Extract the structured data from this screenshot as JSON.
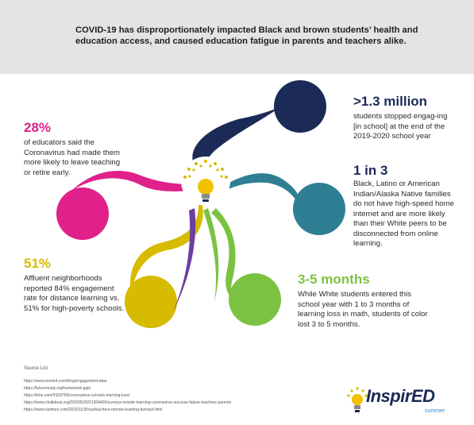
{
  "header": {
    "text": "COVID-19 has disproportionately impacted Black and brown students’ health and education access, and caused education fatigue in parents and teachers alike."
  },
  "stats": [
    {
      "value": "28%",
      "color": "#e0218a",
      "text": "of educators said the Coronavirus had made them more likely to leave teaching or retire early."
    },
    {
      "value": ">1.3 million",
      "color": "#1b2a57",
      "text": "students stopped engag-ing [in school] at the end of the 2019-2020 school year"
    },
    {
      "value": "1 in 3",
      "color": "#1b2a57",
      "text": "Black, Latino or American Indian/Alaska Native families do not have high-speed home internet and are more likely than their White peers to be disconnected from online learning."
    },
    {
      "value": "51%",
      "color": "#d6bb00",
      "text": "Affluent neighborhoods reported 84% engagement rate for distance learning vs. 51% for high-poverty schools."
    },
    {
      "value": "3-5 months",
      "color": "#7cc242",
      "text": "While White students entered this school year with 1 to 3 months of learning loss in math, students of color lost 3 to 5 months."
    }
  ],
  "sources": {
    "title": "Source List",
    "links": [
      "https://www.remind.com/blog/engagement-data",
      "https://futureready.org/homework-gap/",
      "https://time.com/5918769/coronavirus-schools-learning-loss/",
      "https://www.chalkbeat.org/2020/6/26/21304405/surveys-remote-learning-coronavirus-success-failure-teachers-parents",
      "https://www.nytimes.com/2020/11/30/us/teachers-remote-learning-burnout.html"
    ]
  },
  "logo": {
    "text_a": "InspirED",
    "sub": "summer"
  },
  "colors": {
    "pink": "#e0218a",
    "navy": "#1b2a57",
    "teal": "#2e7f93",
    "yellow": "#d6bb00",
    "green": "#7cc242",
    "header_bg": "#e4e4e4"
  },
  "icons": [
    "lightbulb-icon",
    "pink-circle",
    "navy-circle",
    "teal-circle",
    "yellow-circle",
    "green-circle"
  ]
}
